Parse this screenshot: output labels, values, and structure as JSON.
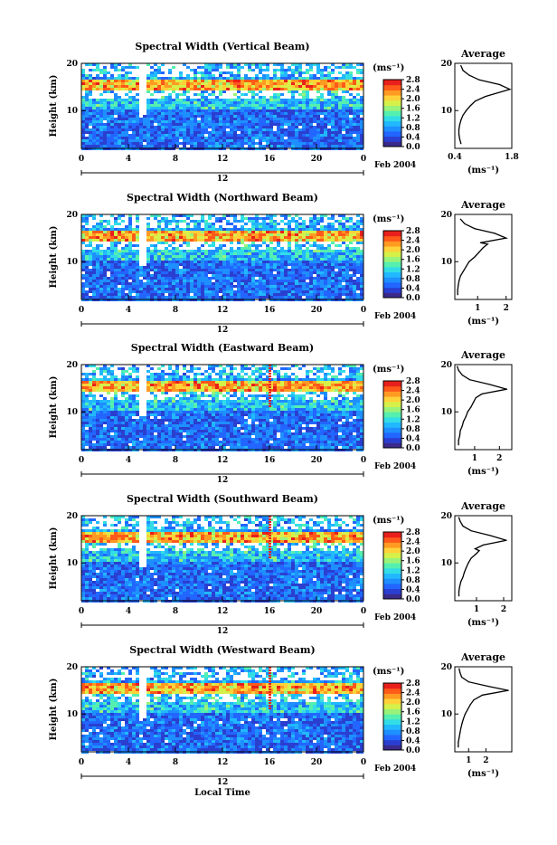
{
  "figure": {
    "xlabel": "Local Time",
    "date_label": "Feb 2004",
    "day_label": "12",
    "ylabel": "Height (km)",
    "units_label": "(ms⁻¹)",
    "avg_title": "Average",
    "avg_xlabel": "(ms⁻¹)"
  },
  "colormap": [
    "#3a2a8c",
    "#2a3fd0",
    "#2266ff",
    "#1e8fff",
    "#22b8ff",
    "#33dde6",
    "#55efb0",
    "#99f37a",
    "#d6f04a",
    "#ffd23a",
    "#ff9a22",
    "#ff5a1a",
    "#e8201c"
  ],
  "chart_data": [
    {
      "type": "heatmap",
      "title": "Spectral Width (Vertical Beam)",
      "xlabel": "Local Time",
      "ylabel": "Height (km)",
      "xlim": [
        0,
        24
      ],
      "ylim": [
        2,
        20
      ],
      "x_ticks": [
        "0",
        "4",
        "8",
        "12",
        "16",
        "20",
        "0"
      ],
      "y_ticks": [
        "10",
        "20"
      ],
      "colorbar_label": "(ms⁻¹)",
      "colorbar_ticks": [
        "0.0",
        "0.4",
        "0.8",
        "1.2",
        "1.6",
        "2.0",
        "2.4",
        "2.8"
      ],
      "colorbar_range": [
        0.0,
        2.8
      ],
      "features": {
        "high_width_layer_km": [
          14.5,
          16.5
        ],
        "gap_time_h": 5
      },
      "average_profile": {
        "xlabel": "(ms⁻¹)",
        "xlim": [
          0.4,
          1.8
        ],
        "x_ticks": [
          "0.4",
          "1.8"
        ],
        "y_ticks": [
          "10",
          "20"
        ],
        "points": [
          [
            0.55,
            3
          ],
          [
            0.52,
            4
          ],
          [
            0.5,
            5
          ],
          [
            0.5,
            6
          ],
          [
            0.52,
            7
          ],
          [
            0.55,
            8
          ],
          [
            0.6,
            9
          ],
          [
            0.68,
            10
          ],
          [
            0.78,
            11
          ],
          [
            0.9,
            12
          ],
          [
            1.15,
            13
          ],
          [
            1.75,
            14.5
          ],
          [
            1.5,
            15.5
          ],
          [
            1.0,
            16.5
          ],
          [
            0.75,
            17.5
          ],
          [
            0.6,
            18.5
          ],
          [
            0.55,
            19.5
          ]
        ]
      }
    },
    {
      "type": "heatmap",
      "title": "Spectral Width (Northward Beam)",
      "xlabel": "Local Time",
      "ylabel": "Height (km)",
      "xlim": [
        0,
        24
      ],
      "ylim": [
        2,
        20
      ],
      "x_ticks": [
        "0",
        "4",
        "8",
        "12",
        "16",
        "20",
        "0"
      ],
      "y_ticks": [
        "10",
        "20"
      ],
      "colorbar_label": "(ms⁻¹)",
      "colorbar_ticks": [
        "0.0",
        "0.4",
        "0.8",
        "1.2",
        "1.6",
        "2.0",
        "2.4",
        "2.8"
      ],
      "colorbar_range": [
        0.0,
        2.8
      ],
      "features": {
        "high_width_layer_km": [
          14.5,
          16.5
        ],
        "gap_time_h": 5
      },
      "average_profile": {
        "xlabel": "(ms⁻¹)",
        "xlim": [
          0.2,
          2.2
        ],
        "x_ticks": [
          "1",
          "2"
        ],
        "y_ticks": [
          "10",
          "20"
        ],
        "points": [
          [
            0.3,
            3
          ],
          [
            0.3,
            4
          ],
          [
            0.32,
            5
          ],
          [
            0.35,
            6
          ],
          [
            0.4,
            7
          ],
          [
            0.5,
            8
          ],
          [
            0.6,
            9
          ],
          [
            0.7,
            10
          ],
          [
            0.9,
            11
          ],
          [
            1.05,
            12
          ],
          [
            1.2,
            13
          ],
          [
            1.35,
            13.7
          ],
          [
            1.1,
            14
          ],
          [
            2.0,
            15
          ],
          [
            1.6,
            16
          ],
          [
            0.9,
            17
          ],
          [
            0.55,
            18
          ],
          [
            0.4,
            19
          ]
        ]
      }
    },
    {
      "type": "heatmap",
      "title": "Spectral Width (Eastward Beam)",
      "xlabel": "Local Time",
      "ylabel": "Height (km)",
      "xlim": [
        0,
        24
      ],
      "ylim": [
        2,
        20
      ],
      "x_ticks": [
        "0",
        "4",
        "8",
        "12",
        "16",
        "20",
        "0"
      ],
      "y_ticks": [
        "10",
        "20"
      ],
      "colorbar_label": "(ms⁻¹)",
      "colorbar_ticks": [
        "0.0",
        "0.4",
        "0.8",
        "1.2",
        "1.6",
        "2.0",
        "2.4",
        "2.8"
      ],
      "colorbar_range": [
        0.0,
        2.8
      ],
      "features": {
        "high_width_layer_km": [
          14.5,
          16.5
        ],
        "gap_time_h": 5
      },
      "average_profile": {
        "xlabel": "(ms⁻¹)",
        "xlim": [
          0.2,
          2.5
        ],
        "x_ticks": [
          "1",
          "2"
        ],
        "y_ticks": [
          "10",
          "20"
        ],
        "points": [
          [
            0.35,
            3
          ],
          [
            0.35,
            4
          ],
          [
            0.4,
            5
          ],
          [
            0.42,
            6
          ],
          [
            0.5,
            7
          ],
          [
            0.55,
            8
          ],
          [
            0.65,
            9
          ],
          [
            0.72,
            10
          ],
          [
            0.85,
            11
          ],
          [
            0.95,
            12
          ],
          [
            1.05,
            13
          ],
          [
            1.3,
            13.8
          ],
          [
            2.3,
            14.8
          ],
          [
            1.6,
            15.8
          ],
          [
            0.8,
            16.8
          ],
          [
            0.5,
            17.8
          ],
          [
            0.35,
            18.8
          ],
          [
            0.3,
            19.6
          ]
        ]
      }
    },
    {
      "type": "heatmap",
      "title": "Spectral Width (Southward Beam)",
      "xlabel": "Local Time",
      "ylabel": "Height (km)",
      "xlim": [
        0,
        24
      ],
      "ylim": [
        2,
        20
      ],
      "x_ticks": [
        "0",
        "4",
        "8",
        "12",
        "16",
        "20",
        "0"
      ],
      "y_ticks": [
        "10",
        "20"
      ],
      "colorbar_label": "(ms⁻¹)",
      "colorbar_ticks": [
        "0.0",
        "0.4",
        "0.8",
        "1.2",
        "1.6",
        "2.0",
        "2.4",
        "2.8"
      ],
      "colorbar_range": [
        0.0,
        2.8
      ],
      "features": {
        "high_width_layer_km": [
          14.5,
          16.5
        ],
        "gap_time_h": 5
      },
      "average_profile": {
        "xlabel": "(ms⁻¹)",
        "xlim": [
          0.2,
          2.3
        ],
        "x_ticks": [
          "1",
          "2"
        ],
        "y_ticks": [
          "10",
          "20"
        ],
        "points": [
          [
            0.35,
            3
          ],
          [
            0.35,
            4
          ],
          [
            0.38,
            5
          ],
          [
            0.42,
            6
          ],
          [
            0.5,
            7
          ],
          [
            0.55,
            8
          ],
          [
            0.62,
            9
          ],
          [
            0.7,
            10
          ],
          [
            0.8,
            11
          ],
          [
            1.0,
            12
          ],
          [
            1.1,
            12.6
          ],
          [
            0.95,
            13
          ],
          [
            1.25,
            13.8
          ],
          [
            2.1,
            14.8
          ],
          [
            1.5,
            15.8
          ],
          [
            0.8,
            16.8
          ],
          [
            0.5,
            17.8
          ],
          [
            0.4,
            18.8
          ],
          [
            0.35,
            19.6
          ]
        ]
      }
    },
    {
      "type": "heatmap",
      "title": "Spectral Width (Westward Beam)",
      "xlabel": "Local Time",
      "ylabel": "Height (km)",
      "xlim": [
        0,
        24
      ],
      "ylim": [
        2,
        20
      ],
      "x_ticks": [
        "0",
        "4",
        "8",
        "12",
        "16",
        "20",
        "0"
      ],
      "y_ticks": [
        "10",
        "20"
      ],
      "colorbar_label": "(ms⁻¹)",
      "colorbar_ticks": [
        "0.0",
        "0.4",
        "0.8",
        "1.2",
        "1.6",
        "2.0",
        "2.4",
        "2.8"
      ],
      "colorbar_range": [
        0.0,
        2.8
      ],
      "features": {
        "high_width_layer_km": [
          14.5,
          16.5
        ],
        "gap_time_h": 5
      },
      "average_profile": {
        "xlabel": "(ms⁻¹)",
        "xlim": [
          0.2,
          3.5
        ],
        "x_ticks": [
          "1",
          "2"
        ],
        "y_ticks": [
          "10",
          "20"
        ],
        "points": [
          [
            0.4,
            3
          ],
          [
            0.4,
            4
          ],
          [
            0.45,
            5
          ],
          [
            0.5,
            6
          ],
          [
            0.55,
            7
          ],
          [
            0.62,
            8
          ],
          [
            0.7,
            9
          ],
          [
            0.8,
            10
          ],
          [
            0.95,
            11
          ],
          [
            1.1,
            12
          ],
          [
            1.3,
            13
          ],
          [
            1.8,
            14
          ],
          [
            3.3,
            15
          ],
          [
            2.2,
            15.8
          ],
          [
            1.0,
            16.8
          ],
          [
            0.6,
            17.8
          ],
          [
            0.5,
            18.8
          ],
          [
            0.45,
            19.6
          ]
        ]
      }
    }
  ]
}
